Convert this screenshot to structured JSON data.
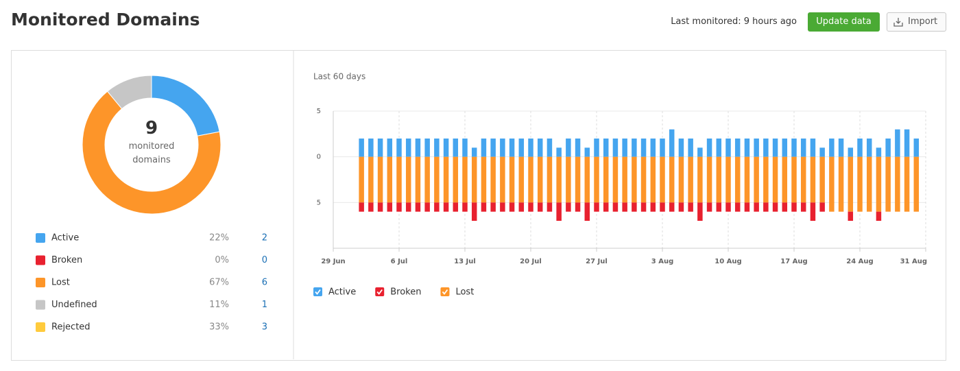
{
  "header": {
    "title": "Monitored Domains",
    "last_monitored": "Last monitored: 9 hours ago",
    "update_button": "Update data",
    "import_button": "Import"
  },
  "donut": {
    "type": "pie",
    "total": 9,
    "total_label": "monitored domains",
    "categories": [
      "Active",
      "Broken",
      "Lost",
      "Undefined",
      "Rejected"
    ],
    "values": [
      22,
      0,
      67,
      11,
      33
    ],
    "value_labels": [
      "22%",
      "0%",
      "67%",
      "11%",
      "33%"
    ],
    "counts": [
      2,
      0,
      6,
      1,
      3
    ],
    "colors": [
      "#45a5ef",
      "#e8212f",
      "#fd9529",
      "#c6c6c6",
      "#ffcb3d"
    ]
  },
  "chart_data": {
    "type": "bar",
    "stacked": true,
    "subtitle": "Last 60 days",
    "categories": [
      "29 Jun",
      null,
      null,
      null,
      null,
      null,
      null,
      "6 Jul",
      null,
      null,
      null,
      null,
      null,
      null,
      "13 Jul",
      null,
      null,
      null,
      null,
      null,
      null,
      "20 Jul",
      null,
      null,
      null,
      null,
      null,
      null,
      "27 Jul",
      null,
      null,
      null,
      null,
      null,
      null,
      "3 Aug",
      null,
      null,
      null,
      null,
      null,
      null,
      "10 Aug",
      null,
      null,
      null,
      null,
      null,
      null,
      "17 Aug",
      null,
      null,
      null,
      null,
      null,
      null,
      "24 Aug",
      null,
      null,
      null,
      null,
      null,
      null,
      "31 Aug"
    ],
    "series": [
      {
        "name": "Active",
        "color": "#45a5ef",
        "values": [
          null,
          null,
          null,
          2,
          2,
          2,
          2,
          2,
          2,
          2,
          2,
          2,
          2,
          2,
          2,
          1,
          2,
          2,
          2,
          2,
          2,
          2,
          2,
          2,
          1,
          2,
          2,
          1,
          2,
          2,
          2,
          2,
          2,
          2,
          2,
          2,
          3,
          2,
          2,
          1,
          2,
          2,
          2,
          2,
          2,
          2,
          2,
          2,
          2,
          2,
          2,
          2,
          1,
          2,
          2,
          1,
          2,
          2,
          1,
          2,
          3,
          3,
          2,
          null
        ]
      },
      {
        "name": "Broken",
        "color": "#e8212f",
        "values": [
          null,
          null,
          null,
          -1,
          -1,
          -1,
          -1,
          -1,
          -1,
          -1,
          -1,
          -1,
          -1,
          -1,
          -1,
          -2,
          -1,
          -1,
          -1,
          -1,
          -1,
          -1,
          -1,
          -1,
          -2,
          -1,
          -1,
          -2,
          -1,
          -1,
          -1,
          -1,
          -1,
          -1,
          -1,
          -1,
          -1,
          -1,
          -1,
          -2,
          -1,
          -1,
          -1,
          -1,
          -1,
          -1,
          -1,
          -1,
          -1,
          -1,
          -1,
          -2,
          -1,
          0,
          0,
          -1,
          0,
          0,
          -1,
          0,
          0,
          0,
          0,
          null
        ]
      },
      {
        "name": "Lost",
        "color": "#fd9529",
        "values": [
          null,
          null,
          null,
          -5,
          -5,
          -5,
          -5,
          -5,
          -5,
          -5,
          -5,
          -5,
          -5,
          -5,
          -5,
          -5,
          -5,
          -5,
          -5,
          -5,
          -5,
          -5,
          -5,
          -5,
          -5,
          -5,
          -5,
          -5,
          -5,
          -5,
          -5,
          -5,
          -5,
          -5,
          -5,
          -5,
          -5,
          -5,
          -5,
          -5,
          -5,
          -5,
          -5,
          -5,
          -5,
          -5,
          -5,
          -5,
          -5,
          -5,
          -5,
          -5,
          -5,
          -6,
          -6,
          -6,
          -6,
          -6,
          -6,
          -6,
          -6,
          -6,
          -6,
          null
        ]
      }
    ],
    "ylim": [
      -10,
      5
    ],
    "yticks": [
      5,
      0,
      {
        "value": -5,
        "label": "5"
      }
    ],
    "grid": true
  }
}
